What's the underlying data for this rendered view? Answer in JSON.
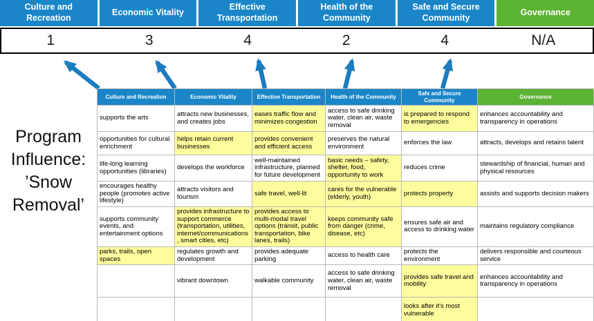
{
  "title": "Program Influence: ’Snow Removal’",
  "colors": {
    "blue": "#1A86C8",
    "green": "#5CB233",
    "highlight": "#FEFD9D",
    "arrow": "#1C7CC0"
  },
  "arrows": {
    "count": 5,
    "direction": "up"
  },
  "scoreboard": {
    "columns": [
      {
        "label": "Culture and Recreation",
        "score": "1",
        "theme": "blue"
      },
      {
        "label": "Economic Vitality",
        "score": "3",
        "theme": "blue"
      },
      {
        "label": "Effective Transportation",
        "score": "4",
        "theme": "blue"
      },
      {
        "label": "Health of the Community",
        "score": "2",
        "theme": "blue"
      },
      {
        "label": "Safe and Secure Community",
        "score": "4",
        "theme": "blue"
      },
      {
        "label": "Governance",
        "score": "N/A",
        "theme": "green"
      }
    ]
  },
  "matrix": {
    "headers": [
      {
        "label": "Culture and Recreation",
        "theme": "blue"
      },
      {
        "label": "Economic Vitality",
        "theme": "blue"
      },
      {
        "label": "Effective Transportation",
        "theme": "blue"
      },
      {
        "label": "Health of the Community",
        "theme": "blue"
      },
      {
        "label": "Safe and Secure\nCommunity",
        "theme": "blue"
      },
      {
        "label": "Governance",
        "theme": "green"
      }
    ],
    "rows": [
      [
        {
          "text": "supports the arts",
          "highlight": false
        },
        {
          "text": "attracts new businesses, and creates jobs",
          "highlight": false
        },
        {
          "text": "eases traffic flow and minimizes congestion",
          "highlight": true
        },
        {
          "text": "access to safe drinking water, clean air, waste removal",
          "highlight": false
        },
        {
          "text": "is prepared to respond to emergencies",
          "highlight": true
        },
        {
          "text": "enhances accountability and transparency in operations",
          "highlight": false
        }
      ],
      [
        {
          "text": "opportunities for cultural enrichment",
          "highlight": false
        },
        {
          "text": "helps retain current businesses",
          "highlight": true
        },
        {
          "text": "provides convenient and efficient access",
          "highlight": true
        },
        {
          "text": "preserves the natural environment",
          "highlight": false
        },
        {
          "text": "enforces the law",
          "highlight": false
        },
        {
          "text": "attracts, develops and retains talent",
          "highlight": false
        }
      ],
      [
        {
          "text": "life-long learning opportunities (libraries)",
          "highlight": false
        },
        {
          "text": "develops the workforce",
          "highlight": false
        },
        {
          "text": "well-maintained infrastructure, planned for future development",
          "highlight": false
        },
        {
          "text": "basic needs – safety, shelter, food, opportunity to work",
          "highlight": true
        },
        {
          "text": "reduces crime",
          "highlight": false
        },
        {
          "text": "stewardship of financial, human and physical resources",
          "highlight": false
        }
      ],
      [
        {
          "text": "encourages healthy people (promotes active lifestyle)",
          "highlight": false
        },
        {
          "text": "attracts visitors and tourism",
          "highlight": false
        },
        {
          "text": "safe travel, well-lit",
          "highlight": true
        },
        {
          "text": "cares for the vulnerable (elderly, youth)",
          "highlight": true
        },
        {
          "text": "protects property",
          "highlight": true
        },
        {
          "text": "assists and supports decision makers",
          "highlight": false
        }
      ],
      [
        {
          "text": "supports community events, and entertainment options",
          "highlight": false
        },
        {
          "text": "provides infrastructure to support commerce (transportation, utilities, internet/communications, smart cities, etc)",
          "highlight": true
        },
        {
          "text": "provides access to multi-modal travel options (transit, public transportation, bike lanes, trails)",
          "highlight": true
        },
        {
          "text": "keeps community safe from danger (crime, disease, etc)",
          "highlight": true
        },
        {
          "text": "ensures safe air and access to drinking water",
          "highlight": false
        },
        {
          "text": "maintains regulatory compliance",
          "highlight": false
        }
      ],
      [
        {
          "text": "parks, trails, open spaces",
          "highlight": true
        },
        {
          "text": "regulates growth and development",
          "highlight": false
        },
        {
          "text": "provides adequate parking",
          "highlight": false
        },
        {
          "text": "access to health care",
          "highlight": false
        },
        {
          "text": "protects the environment",
          "highlight": false
        },
        {
          "text": "delivers responsible and courteous service",
          "highlight": false
        }
      ],
      [
        {
          "text": "",
          "highlight": false
        },
        {
          "text": "vibrant downtown",
          "highlight": false
        },
        {
          "text": "walkable community",
          "highlight": false
        },
        {
          "text": "access to safe drinking water, clean air, waste removal",
          "highlight": false
        },
        {
          "text": "provides safe travel and mobility",
          "highlight": true
        },
        {
          "text": "enhances accountability and transparency in operations",
          "highlight": false
        }
      ],
      [
        {
          "text": "",
          "highlight": false
        },
        {
          "text": "",
          "highlight": false
        },
        {
          "text": "",
          "highlight": false
        },
        {
          "text": "",
          "highlight": false
        },
        {
          "text": "looks after it's most vulnerable",
          "highlight": true
        },
        {
          "text": "",
          "highlight": false
        }
      ]
    ]
  }
}
